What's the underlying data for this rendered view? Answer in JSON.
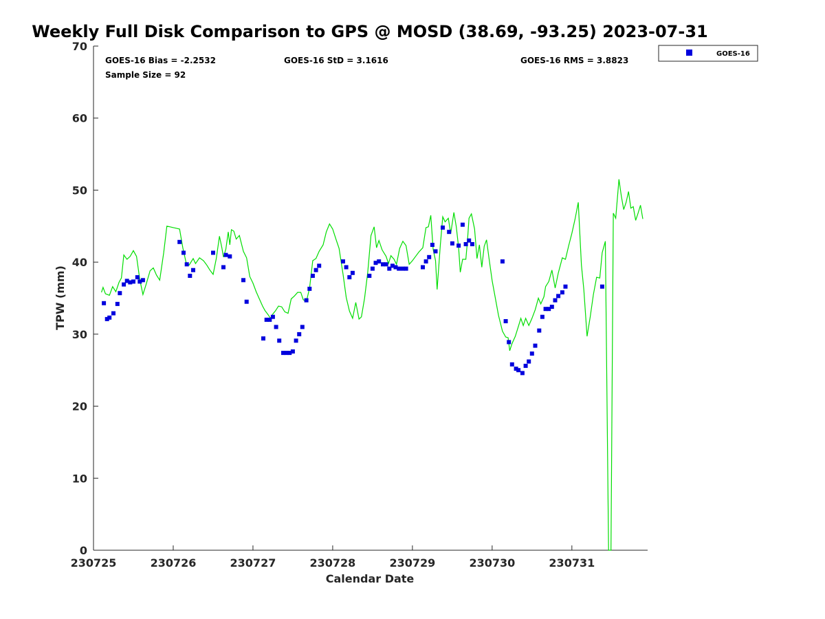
{
  "chart_data": {
    "type": "scatter",
    "title": "Weekly Full Disk Comparison to GPS @ MOSD (38.69, -93.25) 2023-07-31",
    "xlabel": "Calendar Date",
    "ylabel": "TPW (mm)",
    "xlim": [
      230725.0,
      230731.95
    ],
    "ylim": [
      0,
      70
    ],
    "x_ticks": [
      230725,
      230726,
      230727,
      230728,
      230729,
      230730,
      230731
    ],
    "x_tick_labels": [
      "230725",
      "230726",
      "230727",
      "230728",
      "230729",
      "230730",
      "230731"
    ],
    "y_ticks": [
      0,
      10,
      20,
      30,
      40,
      50,
      60,
      70
    ],
    "y_tick_labels": [
      "0",
      "10",
      "20",
      "30",
      "40",
      "50",
      "60",
      "70"
    ],
    "grid": false,
    "legend_position": "top-right",
    "stats": {
      "bias": "GOES-16 Bias = -2.2532",
      "std": "GOES-16 StD = 3.1616",
      "rms": "GOES-16 RMS = 3.8823",
      "sample_size": "Sample Size = 92"
    },
    "series": [
      {
        "name": "GOES-16",
        "kind": "scatter",
        "marker": "square",
        "color": "#0000dd",
        "points": [
          [
            230725.13,
            34.3
          ],
          [
            230725.17,
            32.1
          ],
          [
            230725.2,
            32.3
          ],
          [
            230725.25,
            32.9
          ],
          [
            230725.3,
            34.2
          ],
          [
            230725.33,
            35.7
          ],
          [
            230725.38,
            36.9
          ],
          [
            230725.42,
            37.4
          ],
          [
            230725.46,
            37.2
          ],
          [
            230725.5,
            37.3
          ],
          [
            230725.55,
            37.9
          ],
          [
            230725.58,
            37.3
          ],
          [
            230725.62,
            37.5
          ],
          [
            230726.08,
            42.8
          ],
          [
            230726.13,
            41.3
          ],
          [
            230726.17,
            39.7
          ],
          [
            230726.21,
            38.1
          ],
          [
            230726.25,
            38.9
          ],
          [
            230726.5,
            41.3
          ],
          [
            230726.63,
            39.3
          ],
          [
            230726.66,
            41.0
          ],
          [
            230726.71,
            40.8
          ],
          [
            230726.88,
            37.5
          ],
          [
            230726.92,
            34.5
          ],
          [
            230727.13,
            29.4
          ],
          [
            230727.17,
            32.0
          ],
          [
            230727.21,
            32.0
          ],
          [
            230727.25,
            32.4
          ],
          [
            230727.29,
            31.0
          ],
          [
            230727.33,
            29.1
          ],
          [
            230727.38,
            27.4
          ],
          [
            230727.42,
            27.4
          ],
          [
            230727.46,
            27.4
          ],
          [
            230727.5,
            27.6
          ],
          [
            230727.54,
            29.1
          ],
          [
            230727.58,
            30.0
          ],
          [
            230727.62,
            31.0
          ],
          [
            230727.67,
            34.7
          ],
          [
            230727.71,
            36.3
          ],
          [
            230727.75,
            38.1
          ],
          [
            230727.79,
            38.9
          ],
          [
            230727.83,
            39.5
          ],
          [
            230728.13,
            40.1
          ],
          [
            230728.17,
            39.3
          ],
          [
            230728.21,
            37.9
          ],
          [
            230728.25,
            38.5
          ],
          [
            230728.46,
            38.1
          ],
          [
            230728.5,
            39.1
          ],
          [
            230728.54,
            39.9
          ],
          [
            230728.58,
            40.1
          ],
          [
            230728.63,
            39.7
          ],
          [
            230728.67,
            39.7
          ],
          [
            230728.71,
            39.1
          ],
          [
            230728.75,
            39.5
          ],
          [
            230728.79,
            39.3
          ],
          [
            230728.83,
            39.1
          ],
          [
            230728.88,
            39.1
          ],
          [
            230728.92,
            39.1
          ],
          [
            230729.13,
            39.3
          ],
          [
            230729.17,
            40.1
          ],
          [
            230729.21,
            40.7
          ],
          [
            230729.25,
            42.4
          ],
          [
            230729.29,
            41.5
          ],
          [
            230729.38,
            44.8
          ],
          [
            230729.46,
            44.2
          ],
          [
            230729.5,
            42.6
          ],
          [
            230729.58,
            42.3
          ],
          [
            230729.63,
            45.2
          ],
          [
            230729.67,
            42.5
          ],
          [
            230729.71,
            43.0
          ],
          [
            230729.75,
            42.5
          ],
          [
            230730.13,
            40.1
          ],
          [
            230730.17,
            31.8
          ],
          [
            230730.21,
            28.9
          ],
          [
            230730.25,
            25.8
          ],
          [
            230730.3,
            25.2
          ],
          [
            230730.33,
            25.0
          ],
          [
            230730.38,
            24.6
          ],
          [
            230730.42,
            25.6
          ],
          [
            230730.46,
            26.2
          ],
          [
            230730.5,
            27.3
          ],
          [
            230730.54,
            28.4
          ],
          [
            230730.59,
            30.5
          ],
          [
            230730.63,
            32.4
          ],
          [
            230730.67,
            33.5
          ],
          [
            230730.71,
            33.5
          ],
          [
            230730.75,
            33.8
          ],
          [
            230730.79,
            34.7
          ],
          [
            230730.83,
            35.3
          ],
          [
            230730.88,
            35.8
          ],
          [
            230730.92,
            36.6
          ],
          [
            230731.38,
            36.6
          ]
        ]
      },
      {
        "name": "GPS",
        "kind": "line",
        "color": "#00dd00",
        "points": [
          [
            230725.1,
            35.8
          ],
          [
            230725.12,
            36.5
          ],
          [
            230725.15,
            35.6
          ],
          [
            230725.2,
            35.4
          ],
          [
            230725.24,
            36.6
          ],
          [
            230725.28,
            35.9
          ],
          [
            230725.32,
            37.2
          ],
          [
            230725.35,
            37.8
          ],
          [
            230725.38,
            41.0
          ],
          [
            230725.42,
            40.4
          ],
          [
            230725.46,
            40.8
          ],
          [
            230725.5,
            41.6
          ],
          [
            230725.54,
            40.8
          ],
          [
            230725.58,
            37.6
          ],
          [
            230725.62,
            35.5
          ],
          [
            230725.66,
            36.9
          ],
          [
            230725.71,
            38.8
          ],
          [
            230725.75,
            39.2
          ],
          [
            230725.79,
            38.2
          ],
          [
            230725.83,
            37.5
          ],
          [
            230725.88,
            41.3
          ],
          [
            230725.92,
            45.0
          ],
          [
            230725.96,
            44.9
          ],
          [
            230726.0,
            44.8
          ],
          [
            230726.04,
            44.7
          ],
          [
            230726.08,
            44.6
          ],
          [
            230726.12,
            42.0
          ],
          [
            230726.16,
            40.0
          ],
          [
            230726.2,
            39.6
          ],
          [
            230726.25,
            40.5
          ],
          [
            230726.28,
            39.8
          ],
          [
            230726.33,
            40.6
          ],
          [
            230726.38,
            40.2
          ],
          [
            230726.42,
            39.6
          ],
          [
            230726.46,
            38.9
          ],
          [
            230726.5,
            38.3
          ],
          [
            230726.54,
            40.5
          ],
          [
            230726.58,
            43.6
          ],
          [
            230726.61,
            42.0
          ],
          [
            230726.63,
            40.7
          ],
          [
            230726.66,
            41.8
          ],
          [
            230726.69,
            44.2
          ],
          [
            230726.71,
            42.4
          ],
          [
            230726.73,
            44.5
          ],
          [
            230726.76,
            44.3
          ],
          [
            230726.79,
            43.2
          ],
          [
            230726.83,
            43.7
          ],
          [
            230726.88,
            41.5
          ],
          [
            230726.92,
            40.6
          ],
          [
            230726.96,
            38.0
          ],
          [
            230727.0,
            37.1
          ],
          [
            230727.04,
            35.9
          ],
          [
            230727.08,
            34.9
          ],
          [
            230727.12,
            33.9
          ],
          [
            230727.15,
            33.3
          ],
          [
            230727.19,
            32.7
          ],
          [
            230727.22,
            32.2
          ],
          [
            230727.25,
            32.8
          ],
          [
            230727.28,
            33.2
          ],
          [
            230727.32,
            33.9
          ],
          [
            230727.36,
            33.8
          ],
          [
            230727.4,
            33.1
          ],
          [
            230727.44,
            32.9
          ],
          [
            230727.48,
            34.9
          ],
          [
            230727.52,
            35.3
          ],
          [
            230727.56,
            35.8
          ],
          [
            230727.6,
            35.8
          ],
          [
            230727.63,
            34.8
          ],
          [
            230727.67,
            34.5
          ],
          [
            230727.71,
            36.4
          ],
          [
            230727.75,
            40.2
          ],
          [
            230727.79,
            40.5
          ],
          [
            230727.83,
            41.5
          ],
          [
            230727.88,
            42.4
          ],
          [
            230727.92,
            44.2
          ],
          [
            230727.96,
            45.3
          ],
          [
            230728.0,
            44.6
          ],
          [
            230728.04,
            43.2
          ],
          [
            230728.08,
            41.9
          ],
          [
            230728.13,
            38.3
          ],
          [
            230728.17,
            35.1
          ],
          [
            230728.21,
            33.2
          ],
          [
            230728.25,
            32.2
          ],
          [
            230728.29,
            34.4
          ],
          [
            230728.33,
            32.1
          ],
          [
            230728.36,
            32.4
          ],
          [
            230728.4,
            35.0
          ],
          [
            230728.44,
            38.6
          ],
          [
            230728.48,
            43.7
          ],
          [
            230728.52,
            44.9
          ],
          [
            230728.55,
            42.0
          ],
          [
            230728.58,
            43.0
          ],
          [
            230728.62,
            41.7
          ],
          [
            230728.67,
            40.8
          ],
          [
            230728.7,
            39.8
          ],
          [
            230728.73,
            40.9
          ],
          [
            230728.77,
            40.4
          ],
          [
            230728.8,
            39.7
          ],
          [
            230728.84,
            41.9
          ],
          [
            230728.88,
            42.9
          ],
          [
            230728.92,
            42.3
          ],
          [
            230728.96,
            39.7
          ],
          [
            230729.0,
            40.2
          ],
          [
            230729.04,
            40.8
          ],
          [
            230729.08,
            41.4
          ],
          [
            230729.13,
            42.0
          ],
          [
            230729.17,
            44.8
          ],
          [
            230729.2,
            44.9
          ],
          [
            230729.23,
            46.5
          ],
          [
            230729.26,
            41.8
          ],
          [
            230729.29,
            40.2
          ],
          [
            230729.31,
            36.2
          ],
          [
            230729.35,
            42.4
          ],
          [
            230729.38,
            46.3
          ],
          [
            230729.41,
            45.6
          ],
          [
            230729.45,
            46.1
          ],
          [
            230729.48,
            44.0
          ],
          [
            230729.52,
            46.9
          ],
          [
            230729.55,
            44.9
          ],
          [
            230729.58,
            42.0
          ],
          [
            230729.6,
            38.6
          ],
          [
            230729.63,
            40.4
          ],
          [
            230729.67,
            40.4
          ],
          [
            230729.69,
            42.9
          ],
          [
            230729.71,
            46.1
          ],
          [
            230729.74,
            46.7
          ],
          [
            230729.78,
            44.6
          ],
          [
            230729.81,
            40.5
          ],
          [
            230729.84,
            42.4
          ],
          [
            230729.87,
            39.3
          ],
          [
            230729.9,
            42.2
          ],
          [
            230729.93,
            43.1
          ],
          [
            230729.96,
            40.6
          ],
          [
            230730.0,
            37.4
          ],
          [
            230730.04,
            35.0
          ],
          [
            230730.08,
            32.6
          ],
          [
            230730.13,
            30.4
          ],
          [
            230730.17,
            29.6
          ],
          [
            230730.2,
            29.5
          ],
          [
            230730.22,
            27.7
          ],
          [
            230730.25,
            28.7
          ],
          [
            230730.29,
            29.7
          ],
          [
            230730.33,
            31.1
          ],
          [
            230730.36,
            32.2
          ],
          [
            230730.39,
            31.2
          ],
          [
            230730.42,
            32.2
          ],
          [
            230730.46,
            31.2
          ],
          [
            230730.5,
            32.2
          ],
          [
            230730.54,
            33.4
          ],
          [
            230730.58,
            35.0
          ],
          [
            230730.61,
            34.2
          ],
          [
            230730.65,
            35.2
          ],
          [
            230730.67,
            36.6
          ],
          [
            230730.71,
            37.3
          ],
          [
            230730.75,
            38.9
          ],
          [
            230730.79,
            36.4
          ],
          [
            230730.83,
            38.5
          ],
          [
            230730.88,
            40.6
          ],
          [
            230730.92,
            40.4
          ],
          [
            230730.96,
            42.3
          ],
          [
            230731.0,
            44.0
          ],
          [
            230731.04,
            46.0
          ],
          [
            230731.08,
            48.3
          ],
          [
            230731.12,
            39.6
          ],
          [
            230731.15,
            36.2
          ],
          [
            230731.19,
            29.7
          ],
          [
            230731.23,
            32.4
          ],
          [
            230731.27,
            35.5
          ],
          [
            230731.31,
            37.9
          ],
          [
            230731.35,
            37.8
          ],
          [
            230731.38,
            41.3
          ],
          [
            230731.42,
            42.9
          ],
          [
            230731.46,
            0.0
          ],
          [
            230731.49,
            0.0
          ],
          [
            230731.52,
            46.8
          ],
          [
            230731.55,
            46.1
          ],
          [
            230731.59,
            51.5
          ],
          [
            230731.62,
            49.2
          ],
          [
            230731.65,
            47.3
          ],
          [
            230731.68,
            48.3
          ],
          [
            230731.71,
            49.8
          ],
          [
            230731.74,
            47.5
          ],
          [
            230731.77,
            47.7
          ],
          [
            230731.8,
            45.8
          ],
          [
            230731.83,
            46.8
          ],
          [
            230731.86,
            47.9
          ],
          [
            230731.89,
            46.0
          ]
        ]
      }
    ]
  }
}
